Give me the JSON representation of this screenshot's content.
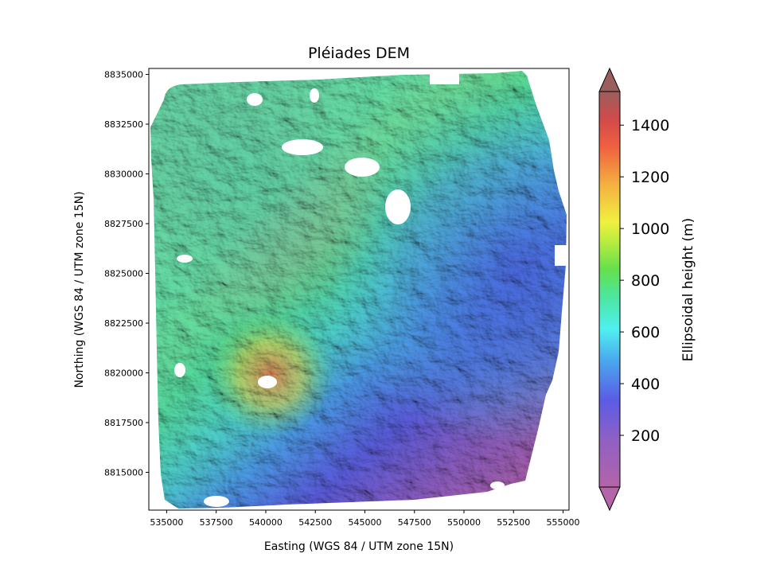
{
  "chart_data": {
    "type": "heatmap",
    "title": "Pléiades DEM",
    "xlabel": "Easting (WGS 84 / UTM zone 15N)",
    "ylabel": "Northing (WGS 84 / UTM zone 15N)",
    "xlim": [
      534100,
      555300
    ],
    "ylim": [
      8813100,
      8835300
    ],
    "xticks": [
      535000,
      537500,
      540000,
      542500,
      545000,
      547500,
      550000,
      552500,
      555000
    ],
    "yticks": [
      8815000,
      8817500,
      8820000,
      8822500,
      8825000,
      8827500,
      8830000,
      8832500,
      8835000
    ],
    "colorbar": {
      "label": "Ellipsoidal height (m)",
      "min": 0,
      "max": 1530,
      "ticks": [
        200,
        400,
        600,
        800,
        1000,
        1200,
        1400
      ],
      "extend": "both",
      "colormap": "rainbow"
    }
  }
}
